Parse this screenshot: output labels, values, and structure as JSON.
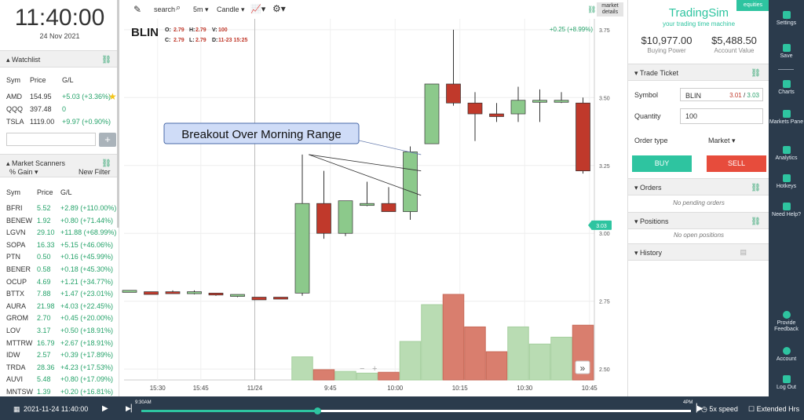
{
  "clock": {
    "time": "11:40:00",
    "date": "24 Nov 2021"
  },
  "watchlist": {
    "title": "Watchlist",
    "columns": [
      "Sym",
      "Price",
      "G/L"
    ],
    "rows": [
      {
        "sym": "AMD",
        "price": "154.95",
        "gl": "+5.03 (+3.36%)",
        "starred": true
      },
      {
        "sym": "QQQ",
        "price": "397.48",
        "gl": "0"
      },
      {
        "sym": "TSLA",
        "price": "1119.00",
        "gl": "+9.97 (+0.90%)"
      }
    ],
    "add_button": "+"
  },
  "scanners": {
    "title": "Market Scanners",
    "filter_label": "% Gain",
    "new_filter": "New Filter",
    "columns": [
      "Sym",
      "Price",
      "G/L"
    ],
    "rows": [
      {
        "sym": "BFRI",
        "price": "5.52",
        "gl": "+2.89 (+110.00%)"
      },
      {
        "sym": "BENEW",
        "price": "1.92",
        "gl": "+0.80 (+71.44%)"
      },
      {
        "sym": "LGVN",
        "price": "29.10",
        "gl": "+11.88 (+68.99%)"
      },
      {
        "sym": "SOPA",
        "price": "16.33",
        "gl": "+5.15 (+46.06%)"
      },
      {
        "sym": "PTN",
        "price": "0.50",
        "gl": "+0.16 (+45.99%)"
      },
      {
        "sym": "BENER",
        "price": "0.58",
        "gl": "+0.18 (+45.30%)"
      },
      {
        "sym": "OCUP",
        "price": "4.69",
        "gl": "+1.21 (+34.77%)"
      },
      {
        "sym": "BTTX",
        "price": "7.88",
        "gl": "+1.47 (+23.01%)"
      },
      {
        "sym": "AURA",
        "price": "21.98",
        "gl": "+4.03 (+22.45%)"
      },
      {
        "sym": "GROM",
        "price": "2.70",
        "gl": "+0.45 (+20.00%)"
      },
      {
        "sym": "LOV",
        "price": "3.17",
        "gl": "+0.50 (+18.91%)"
      },
      {
        "sym": "MTTRW",
        "price": "16.79",
        "gl": "+2.67 (+18.91%)"
      },
      {
        "sym": "IDW",
        "price": "2.57",
        "gl": "+0.39 (+17.89%)"
      },
      {
        "sym": "TRDA",
        "price": "28.36",
        "gl": "+4.23 (+17.53%)"
      },
      {
        "sym": "AUVI",
        "price": "5.48",
        "gl": "+0.80 (+17.09%)"
      },
      {
        "sym": "MNTSW",
        "price": "1.39",
        "gl": "+0.20 (+16.81%)"
      }
    ]
  },
  "toolbar": {
    "search": "search",
    "interval": "5m",
    "chart_type": "Candle",
    "market_details": "market details"
  },
  "chart_header": {
    "symbol": "BLIN",
    "o_label": "O:",
    "o": "2.79",
    "h_label": "H:",
    "h": "2.79",
    "v_label": "V:",
    "v": "100",
    "c_label": "C:",
    "c": "2.79",
    "l_label": "L:",
    "l": "2.79",
    "d_label": "D:",
    "d": "11-23 15:25",
    "change": "+0.25 (+8.99%)",
    "annotation": "Breakout Over Morning Range",
    "current_price_tag": "3.03",
    "zoom_minus": "−",
    "zoom_plus": "+",
    "fast_forward": "»"
  },
  "chart_data": {
    "type": "candlestick",
    "x_ticks": [
      "15:30",
      "15:45",
      "11/24",
      "9:45",
      "10:00",
      "10:15",
      "10:30",
      "10:45"
    ],
    "y_ticks": [
      3.75,
      3.5,
      3.25,
      3.0,
      2.75,
      2.5
    ],
    "y_range": [
      2.46,
      3.79
    ],
    "candles": [
      {
        "o": 2.79,
        "h": 2.79,
        "l": 2.79,
        "c": 2.79,
        "v": 0
      },
      {
        "o": 2.785,
        "h": 2.785,
        "l": 2.775,
        "c": 2.775,
        "v": 0
      },
      {
        "o": 2.785,
        "h": 2.79,
        "l": 2.78,
        "c": 2.78,
        "v": 0
      },
      {
        "o": 2.78,
        "h": 2.79,
        "l": 2.775,
        "c": 2.785,
        "v": 0
      },
      {
        "o": 2.78,
        "h": 2.78,
        "l": 2.77,
        "c": 2.775,
        "v": 0
      },
      {
        "o": 2.77,
        "h": 2.775,
        "l": 2.765,
        "c": 2.775,
        "v": 0
      },
      {
        "o": 2.765,
        "h": 2.765,
        "l": 2.755,
        "c": 2.755,
        "v": 0
      },
      {
        "o": 2.765,
        "h": 2.765,
        "l": 2.76,
        "c": 2.76,
        "v": 0
      },
      {
        "o": 2.78,
        "h": 3.29,
        "l": 2.77,
        "c": 3.11,
        "v": 0.27
      },
      {
        "o": 3.11,
        "h": 3.23,
        "l": 2.98,
        "c": 3.0,
        "v": 0.12
      },
      {
        "o": 3.0,
        "h": 3.12,
        "l": 2.99,
        "c": 3.12,
        "v": 0.1
      },
      {
        "o": 3.11,
        "h": 3.19,
        "l": 3.1,
        "c": 3.11,
        "v": 0.08
      },
      {
        "o": 3.11,
        "h": 3.17,
        "l": 3.08,
        "c": 3.08,
        "v": 0.09
      },
      {
        "o": 3.08,
        "h": 3.32,
        "l": 3.05,
        "c": 3.3,
        "v": 0.45
      },
      {
        "o": 3.33,
        "h": 3.55,
        "l": 3.33,
        "c": 3.55,
        "v": 0.88
      },
      {
        "o": 3.55,
        "h": 3.75,
        "l": 3.47,
        "c": 3.48,
        "v": 1.0
      },
      {
        "o": 3.48,
        "h": 3.52,
        "l": 3.34,
        "c": 3.44,
        "v": 0.62
      },
      {
        "o": 3.44,
        "h": 3.48,
        "l": 3.41,
        "c": 3.43,
        "v": 0.33
      },
      {
        "o": 3.44,
        "h": 3.54,
        "l": 3.41,
        "c": 3.49,
        "v": 0.62
      },
      {
        "o": 3.49,
        "h": 3.53,
        "l": 3.41,
        "c": 3.49,
        "v": 0.42
      },
      {
        "o": 3.49,
        "h": 3.52,
        "l": 3.48,
        "c": 3.49,
        "v": 0.5
      },
      {
        "o": 3.48,
        "h": 3.5,
        "l": 3.22,
        "c": 3.23,
        "v": 0.64
      }
    ]
  },
  "right_panel": {
    "brand": "TradingSim",
    "tagline": "your trading time machine",
    "equities_badge": "equities",
    "buying_power": "$10,977.00",
    "buying_power_label": "Buying Power",
    "account_value": "$5,488.50",
    "account_value_label": "Account Value",
    "trade_ticket": "Trade Ticket",
    "symbol_label": "Symbol",
    "symbol_value": "BLIN",
    "bid": "3.01",
    "ask": "3.03",
    "quantity_label": "Quantity",
    "quantity_value": "100",
    "order_type_label": "Order type",
    "order_type_value": "Market",
    "buy": "BUY",
    "sell": "SELL",
    "orders": "Orders",
    "no_orders": "No pending orders",
    "positions": "Positions",
    "no_positions": "No open positions",
    "history": "History"
  },
  "nav": {
    "settings": "Settings",
    "save": "Save",
    "charts": "Charts",
    "markets_pane": "Markets Pane",
    "analytics": "Analytics",
    "hotkeys": "Hotkeys",
    "need_help": "Need Help?",
    "feedback": "Provide Feedback",
    "account": "Account",
    "logout": "Log Out"
  },
  "bottom": {
    "datetime": "2021-11-24  11:40:00",
    "start_label": "9:30AM",
    "end_label": "4PM",
    "speed": "5x speed",
    "extended": "Extended Hrs",
    "progress": 0.32
  },
  "colors": {
    "up": "#8cc98b",
    "down": "#c0392b",
    "accent": "#2ec4a0",
    "nav_bg": "#2b3b4c"
  }
}
